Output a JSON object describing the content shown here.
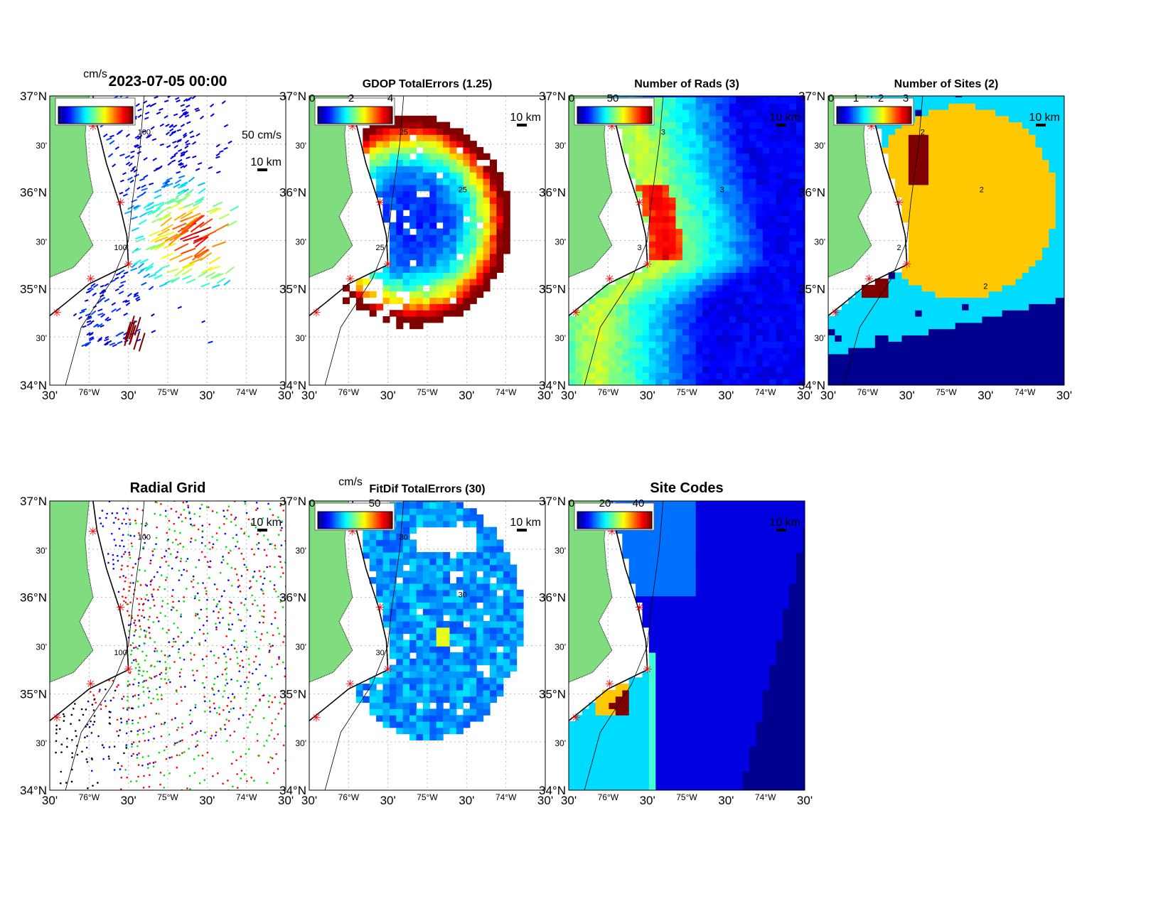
{
  "figure": {
    "timestamp_title": "2023-07-05 00:00",
    "velocity_unit": "cm/s",
    "vector_scale_label": "50 cm/s",
    "distance_scale_label": "10 km"
  },
  "axes": {
    "lat_ticks": [
      "37°N",
      "30'",
      "36°N",
      "30'",
      "35°N",
      "30'",
      "34°N"
    ],
    "lon_ticks": [
      "30'",
      "76°W",
      "30'",
      "75°W",
      "30'",
      "74°W",
      "30'"
    ],
    "lon_range": [
      -76.5,
      -73.5
    ],
    "lat_range": [
      34,
      37
    ]
  },
  "colors": {
    "land": "#7fdc7f",
    "site_marker": "#ff0000",
    "colormap": "jet",
    "sites_levels": [
      "#00008f",
      "#00dcff",
      "#ffc800",
      "#800000"
    ]
  },
  "panels": [
    {
      "id": "currents",
      "title": "2023-07-05 00:00",
      "colorbar_ticks": [],
      "colorbar_unit": "cm/s",
      "scale_labels": [
        "50 cm/s",
        "10 km"
      ],
      "contour_labels": [
        "100",
        "100"
      ]
    },
    {
      "id": "gdop",
      "title": "GDOP TotalErrors (1.25)",
      "colorbar_ticks": [
        "0",
        "2",
        "4"
      ],
      "colorbar_unit": "",
      "scale_labels": [
        "10 km"
      ],
      "contour_labels": [
        "25",
        "25",
        "25"
      ]
    },
    {
      "id": "rads",
      "title": "Number of Rads (3)",
      "colorbar_ticks": [
        "0",
        "50"
      ],
      "colorbar_unit": "",
      "scale_labels": [
        "10 km"
      ],
      "contour_labels": [
        "3",
        "3",
        "3"
      ]
    },
    {
      "id": "sites",
      "title": "Number of Sites (2)",
      "colorbar_ticks": [
        "0",
        "1",
        "2",
        "3"
      ],
      "colorbar_unit": "",
      "scale_labels": [
        "10 km"
      ],
      "contour_labels": [
        "2",
        "2",
        "2",
        "2"
      ]
    },
    {
      "id": "radial-grid",
      "title": "Radial Grid",
      "colorbar_ticks": [],
      "colorbar_unit": "",
      "scale_labels": [
        "10 km"
      ],
      "contour_labels": [
        "100",
        "100"
      ]
    },
    {
      "id": "fitdif",
      "title": "FitDif TotalErrors (30)",
      "colorbar_ticks": [
        "0",
        "50"
      ],
      "colorbar_unit": "cm/s",
      "scale_labels": [
        "10 km"
      ],
      "contour_labels": [
        "30",
        "30",
        "30"
      ]
    },
    {
      "id": "site-codes",
      "title": "Site Codes",
      "colorbar_ticks": [
        "0",
        "20",
        "40"
      ],
      "colorbar_unit": "",
      "scale_labels": [
        "10 km"
      ],
      "contour_labels": []
    }
  ],
  "sites": [
    {
      "lon": -75.95,
      "lat": 36.68
    },
    {
      "lon": -75.6,
      "lat": 35.89
    },
    {
      "lon": -75.5,
      "lat": 35.25
    },
    {
      "lon": -75.98,
      "lat": 35.1
    },
    {
      "lon": -76.41,
      "lat": 34.75
    }
  ]
}
